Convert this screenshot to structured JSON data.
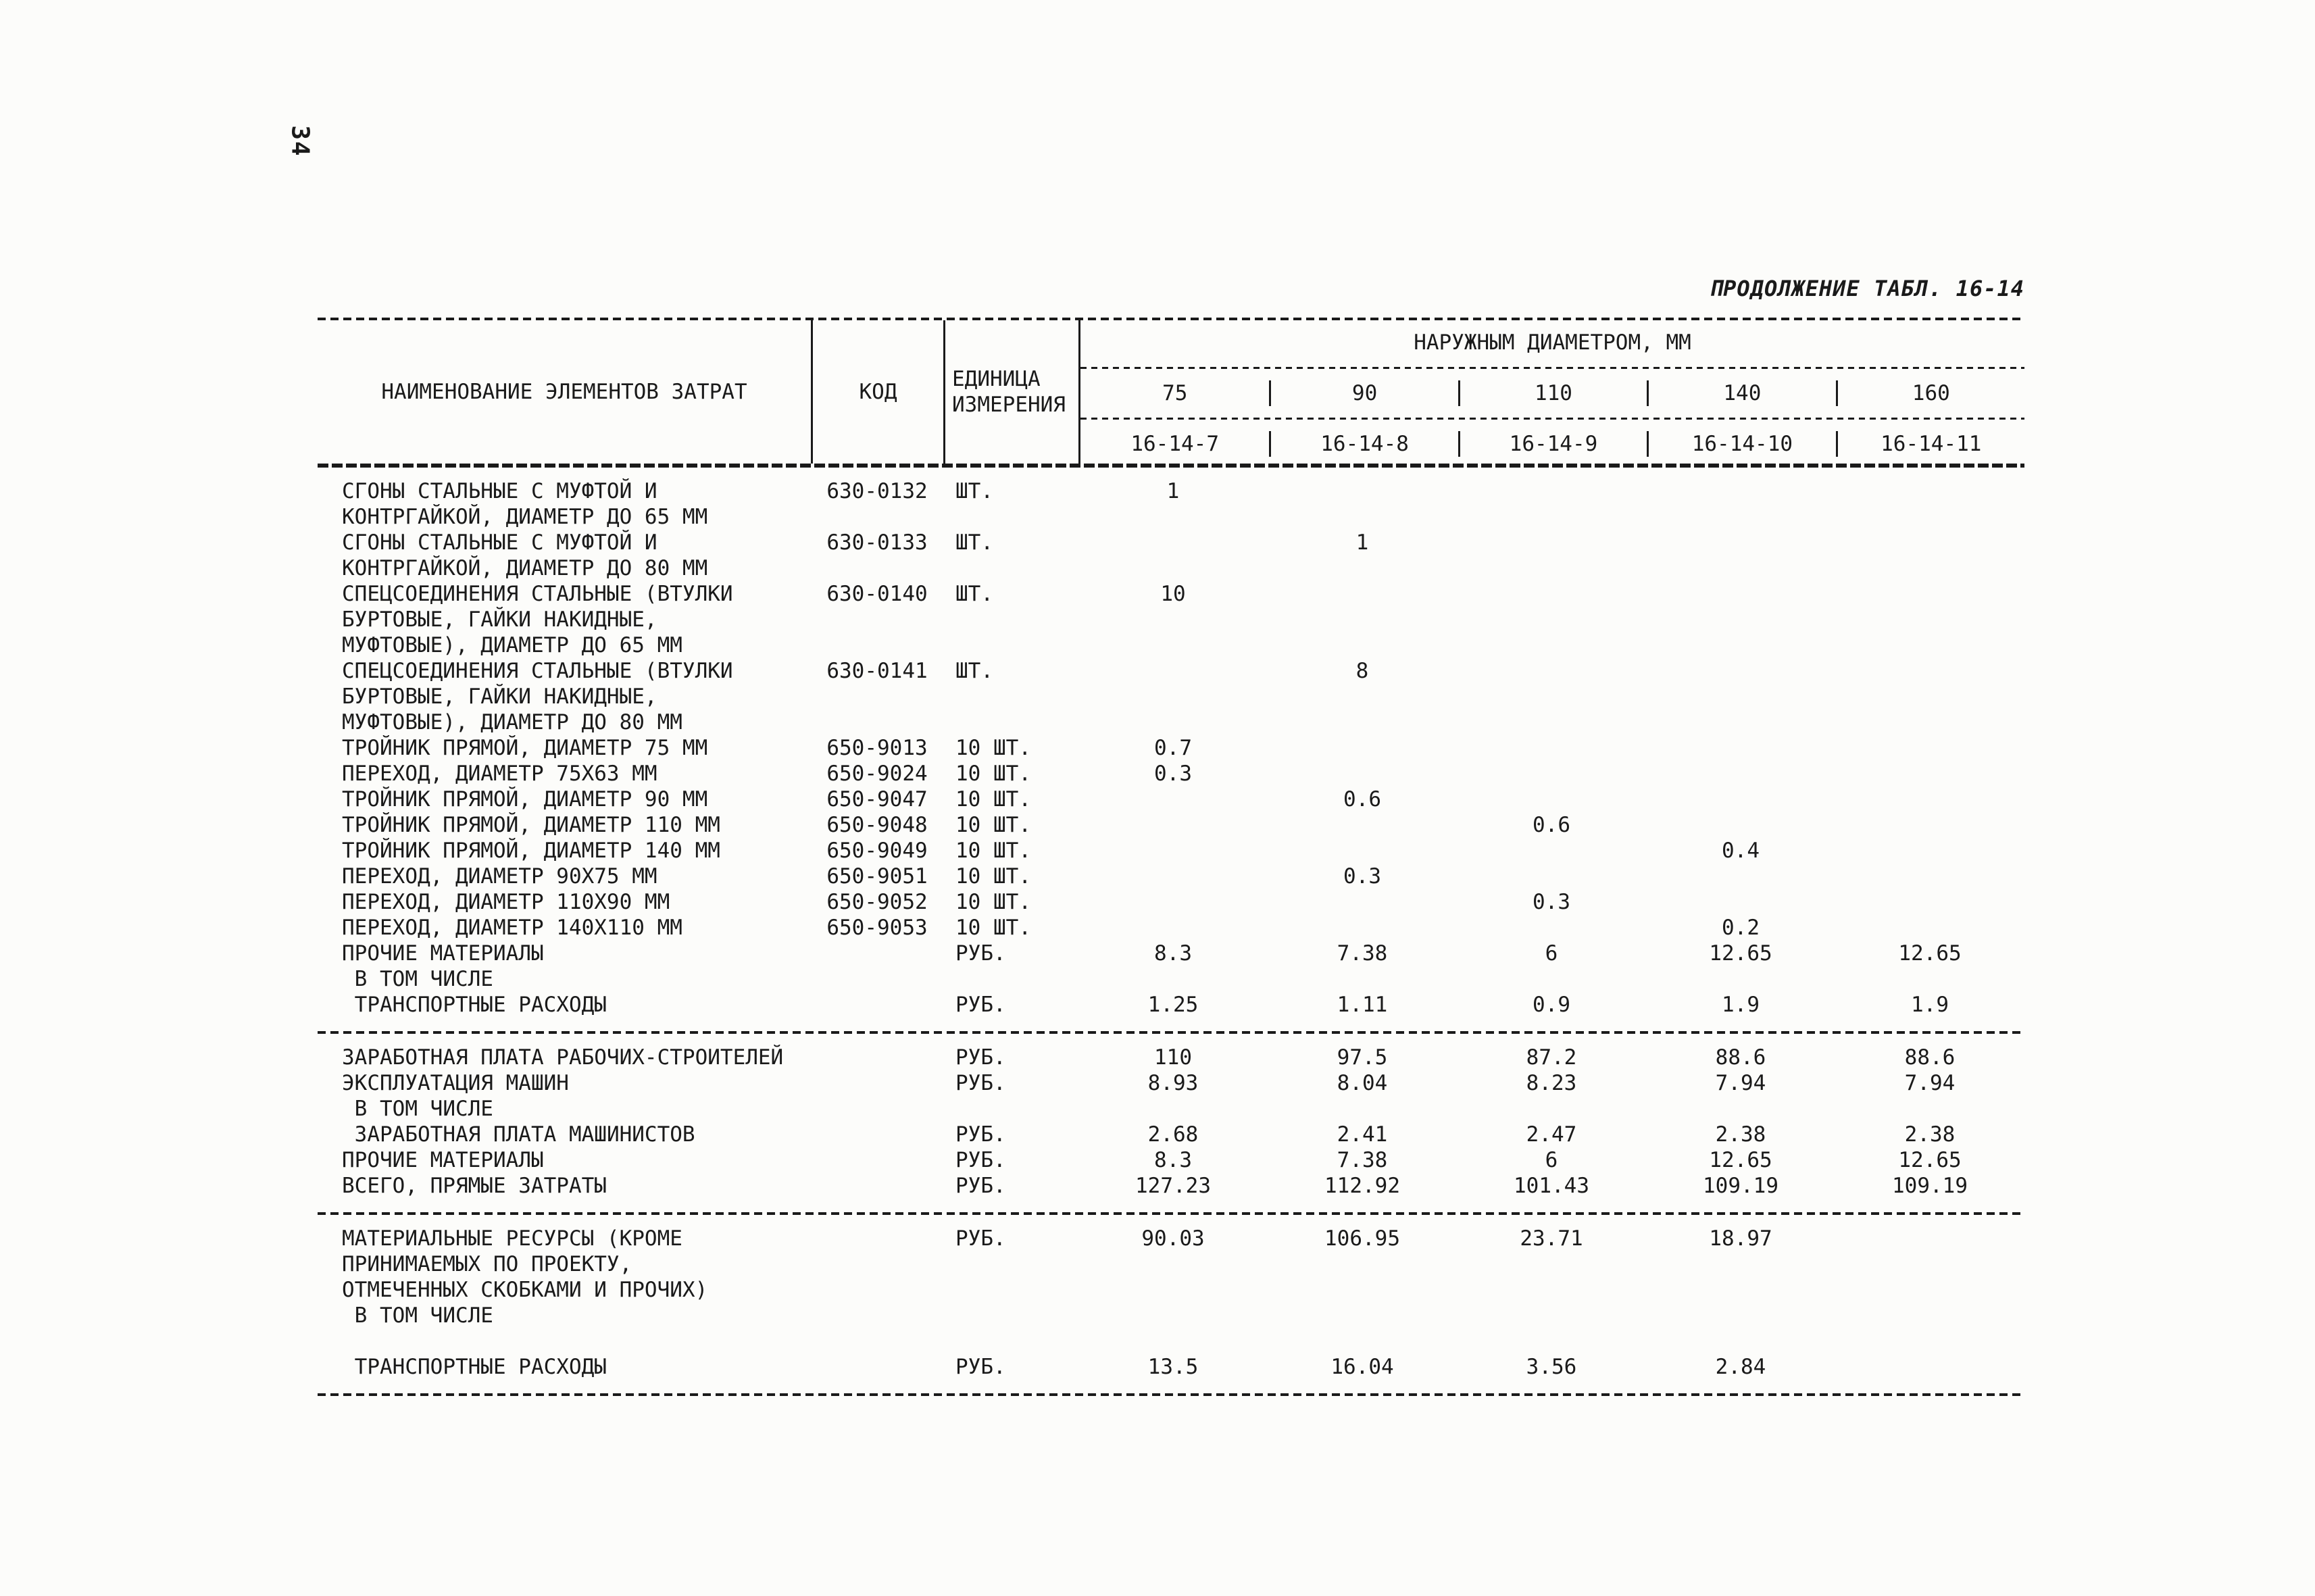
{
  "colors": {
    "ink": "#1a1a1a",
    "paper": "#fcfcfa"
  },
  "page": {
    "number": "34",
    "title": "ПРОДОЛЖЕНИЕ ТАБЛ. 16-14"
  },
  "table": {
    "headers": {
      "name": "НАИМЕНОВАНИЕ ЭЛЕМЕНТОВ ЗАТРАТ",
      "code": "КОД",
      "unit_line1": "ЕДИНИЦА",
      "unit_line2": "ИЗМЕРЕНИЯ",
      "group": "НАРУЖНЫМ ДИАМЕТРОМ, ММ",
      "diameters": [
        "75",
        "90",
        "110",
        "140",
        "160"
      ],
      "codes": [
        "16-14-7",
        "16-14-8",
        "16-14-9",
        "16-14-10",
        "16-14-11"
      ]
    },
    "sections": [
      {
        "rows": [
          {
            "name": "СГОНЫ СТАЛЬНЫЕ С МУФТОЙ И\nКОНТРГАЙКОЙ, ДИАМЕТР ДО 65 ММ",
            "code": "630-0132",
            "unit": "ШТ.",
            "values": [
              "1",
              "",
              "",
              "",
              ""
            ]
          },
          {
            "name": "СГОНЫ СТАЛЬНЫЕ С МУФТОЙ И\nКОНТРГАЙКОЙ, ДИАМЕТР ДО 80 ММ",
            "code": "630-0133",
            "unit": "ШТ.",
            "values": [
              "",
              "1",
              "",
              "",
              ""
            ]
          },
          {
            "name": "СПЕЦСОЕДИНЕНИЯ СТАЛЬНЫЕ (ВТУЛКИ\nБУРТОВЫЕ, ГАЙКИ НАКИДНЫЕ,\nМУФТОВЫЕ), ДИАМЕТР ДО 65 ММ",
            "code": "630-0140",
            "unit": "ШТ.",
            "values": [
              "10",
              "",
              "",
              "",
              ""
            ]
          },
          {
            "name": "СПЕЦСОЕДИНЕНИЯ СТАЛЬНЫЕ (ВТУЛКИ\nБУРТОВЫЕ, ГАЙКИ НАКИДНЫЕ,\nМУФТОВЫЕ), ДИАМЕТР ДО 80 ММ",
            "code": "630-0141",
            "unit": "ШТ.",
            "values": [
              "",
              "8",
              "",
              "",
              ""
            ]
          },
          {
            "name": "ТРОЙНИК ПРЯМОЙ, ДИАМЕТР 75 ММ",
            "code": "650-9013",
            "unit": "10 ШТ.",
            "values": [
              "0.7",
              "",
              "",
              "",
              ""
            ]
          },
          {
            "name": "ПЕРЕХОД, ДИАМЕТР 75X63 ММ",
            "code": "650-9024",
            "unit": "10 ШТ.",
            "values": [
              "0.3",
              "",
              "",
              "",
              ""
            ]
          },
          {
            "name": "ТРОЙНИК ПРЯМОЙ, ДИАМЕТР 90 ММ",
            "code": "650-9047",
            "unit": "10 ШТ.",
            "values": [
              "",
              "0.6",
              "",
              "",
              ""
            ]
          },
          {
            "name": "ТРОЙНИК ПРЯМОЙ, ДИАМЕТР 110 ММ",
            "code": "650-9048",
            "unit": "10 ШТ.",
            "values": [
              "",
              "",
              "0.6",
              "",
              ""
            ]
          },
          {
            "name": "ТРОЙНИК ПРЯМОЙ, ДИАМЕТР 140 ММ",
            "code": "650-9049",
            "unit": "10 ШТ.",
            "values": [
              "",
              "",
              "",
              "0.4",
              ""
            ]
          },
          {
            "name": "ПЕРЕХОД, ДИАМЕТР 90X75 ММ",
            "code": "650-9051",
            "unit": "10 ШТ.",
            "values": [
              "",
              "0.3",
              "",
              "",
              ""
            ]
          },
          {
            "name": "ПЕРЕХОД, ДИАМЕТР 110X90 ММ",
            "code": "650-9052",
            "unit": "10 ШТ.",
            "values": [
              "",
              "",
              "0.3",
              "",
              ""
            ]
          },
          {
            "name": "ПЕРЕХОД, ДИАМЕТР 140X110 ММ",
            "code": "650-9053",
            "unit": "10 ШТ.",
            "values": [
              "",
              "",
              "",
              "0.2",
              ""
            ]
          },
          {
            "name": "ПРОЧИЕ МАТЕРИАЛЫ",
            "code": "",
            "unit": "РУБ.",
            "values": [
              "8.3",
              "7.38",
              "6",
              "12.65",
              "12.65"
            ]
          },
          {
            "name": " В ТОМ ЧИСЛЕ",
            "code": "",
            "unit": "",
            "values": [
              "",
              "",
              "",
              "",
              ""
            ]
          },
          {
            "name": " ТРАНСПОРТНЫЕ РАСХОДЫ",
            "code": "",
            "unit": "РУБ.",
            "values": [
              "1.25",
              "1.11",
              "0.9",
              "1.9",
              "1.9"
            ]
          }
        ]
      },
      {
        "rows": [
          {
            "name": "ЗАРАБОТНАЯ ПЛАТА РАБОЧИХ-СТРОИТЕЛЕЙ",
            "code": "",
            "unit": "РУБ.",
            "values": [
              "110",
              "97.5",
              "87.2",
              "88.6",
              "88.6"
            ]
          },
          {
            "name": "ЭКСПЛУАТАЦИЯ МАШИН",
            "code": "",
            "unit": "РУБ.",
            "values": [
              "8.93",
              "8.04",
              "8.23",
              "7.94",
              "7.94"
            ]
          },
          {
            "name": " В ТОМ ЧИСЛЕ",
            "code": "",
            "unit": "",
            "values": [
              "",
              "",
              "",
              "",
              ""
            ]
          },
          {
            "name": " ЗАРАБОТНАЯ ПЛАТА МАШИНИСТОВ",
            "code": "",
            "unit": "РУБ.",
            "values": [
              "2.68",
              "2.41",
              "2.47",
              "2.38",
              "2.38"
            ]
          },
          {
            "name": "ПРОЧИЕ МАТЕРИАЛЫ",
            "code": "",
            "unit": "РУБ.",
            "values": [
              "8.3",
              "7.38",
              "6",
              "12.65",
              "12.65"
            ]
          },
          {
            "name": "ВСЕГО, ПРЯМЫЕ ЗАТРАТЫ",
            "code": "",
            "unit": "РУБ.",
            "values": [
              "127.23",
              "112.92",
              "101.43",
              "109.19",
              "109.19"
            ]
          }
        ]
      },
      {
        "rows": [
          {
            "name": "МАТЕРИАЛЬНЫЕ РЕСУРСЫ (КРОМЕ\nПРИНИМАЕМЫХ ПО ПРОЕКТУ,\nОТМЕЧЕННЫХ СКОБКАМИ И ПРОЧИХ)",
            "code": "",
            "unit": "РУБ.",
            "values": [
              "90.03",
              "106.95",
              "23.71",
              "18.97",
              ""
            ]
          },
          {
            "name": " В ТОМ ЧИСЛЕ",
            "code": "",
            "unit": "",
            "values": [
              "",
              "",
              "",
              "",
              ""
            ]
          },
          {
            "name": " ТРАНСПОРТНЫЕ РАСХОДЫ",
            "code": "",
            "unit": "РУБ.",
            "values": [
              "13.5",
              "16.04",
              "3.56",
              "2.84",
              ""
            ],
            "gap": true
          }
        ]
      }
    ]
  }
}
